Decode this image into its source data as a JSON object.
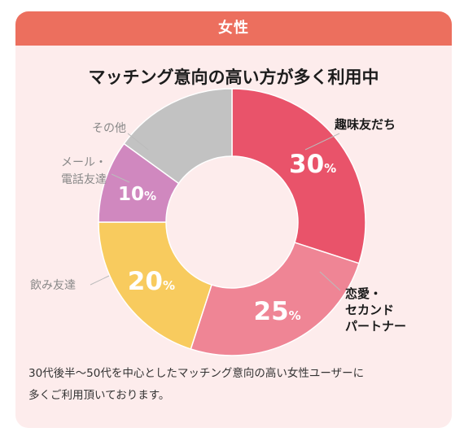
{
  "header": {
    "title": "女性"
  },
  "chart_data": {
    "type": "pie",
    "title": "マッチング意向の高い方が多く利用中",
    "categories": [
      "趣味友だち",
      "恋愛・セカンドパートナー",
      "飲み友達",
      "メール・電話友達",
      "その他"
    ],
    "values": [
      30,
      25,
      20,
      10,
      15
    ],
    "value_labels": [
      "30%",
      "25%",
      "20%",
      "10%",
      ""
    ],
    "label_lines": [
      [
        "趣味友だち"
      ],
      [
        "恋愛・",
        "セカンド",
        "パートナー"
      ],
      [
        "飲み友達"
      ],
      [
        "メール・",
        "電話友達"
      ],
      [
        "その他"
      ]
    ],
    "colors": [
      "#e9536a",
      "#ef8595",
      "#f8cb5e",
      "#d088bf",
      "#c2c2c2"
    ],
    "label_colors": [
      "#1a1a1a",
      "#1a1a1a",
      "#888888",
      "#888888",
      "#888888"
    ],
    "donut": true
  },
  "footer": {
    "caption_line1": "30代後半〜50代を中心としたマッチング意向の高い女性ユーザーに",
    "caption_line2": "多くご利用頂いております。"
  }
}
